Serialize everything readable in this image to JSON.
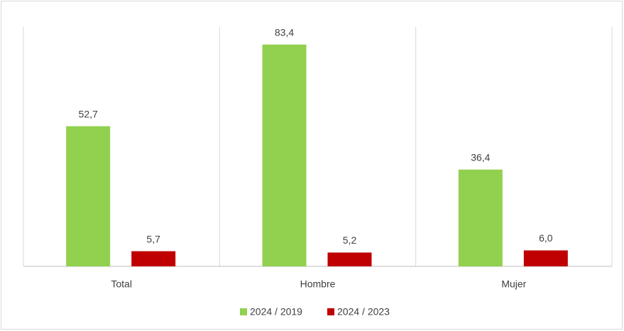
{
  "chart_data": {
    "type": "bar",
    "categories": [
      "Total",
      "Hombre",
      "Mujer"
    ],
    "series": [
      {
        "name": "2024 / 2019",
        "color": "#92d050",
        "values": [
          52.7,
          83.4,
          36.4
        ],
        "value_labels": [
          "52,7",
          "83,4",
          "36,4"
        ]
      },
      {
        "name": "2024 / 2023",
        "color": "#c00000",
        "values": [
          5.7,
          5.2,
          6.0
        ],
        "value_labels": [
          "5,7",
          "5,2",
          "6,0"
        ]
      }
    ],
    "ylim": [
      0,
      90
    ],
    "legend": "bottom"
  }
}
